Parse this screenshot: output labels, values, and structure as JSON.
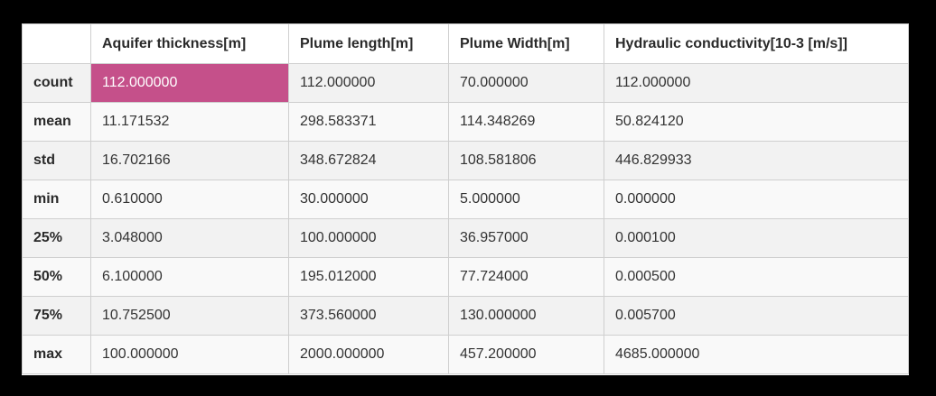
{
  "table": {
    "corner_label": "",
    "columns": [
      "Aquifer thickness[m]",
      "Plume length[m]",
      "Plume Width[m]",
      "Hydraulic conductivity[10-3 [m/s]]"
    ],
    "rows": [
      {
        "label": "count",
        "values": [
          "112.000000",
          "112.000000",
          "70.000000",
          "112.000000"
        ]
      },
      {
        "label": "mean",
        "values": [
          "11.171532",
          "298.583371",
          "114.348269",
          "50.824120"
        ]
      },
      {
        "label": "std",
        "values": [
          "16.702166",
          "348.672824",
          "108.581806",
          "446.829933"
        ]
      },
      {
        "label": "min",
        "values": [
          "0.610000",
          "30.000000",
          "5.000000",
          "0.000000"
        ]
      },
      {
        "label": "25%",
        "values": [
          "3.048000",
          "100.000000",
          "36.957000",
          "0.000100"
        ]
      },
      {
        "label": "50%",
        "values": [
          "6.100000",
          "195.012000",
          "77.724000",
          "0.000500"
        ]
      },
      {
        "label": "75%",
        "values": [
          "10.752500",
          "373.560000",
          "130.000000",
          "0.005700"
        ]
      },
      {
        "label": "max",
        "values": [
          "100.000000",
          "2000.000000",
          "457.200000",
          "4685.000000"
        ]
      }
    ],
    "selected_cell": {
      "row": 0,
      "col": 0
    },
    "colors": {
      "selected_bg": "#c5508a",
      "selected_text": "#ffffff",
      "row_odd": "#f2f2f2",
      "row_even": "#f9f9f9",
      "border": "#cfcfcf",
      "outer_bg": "#000000"
    }
  }
}
